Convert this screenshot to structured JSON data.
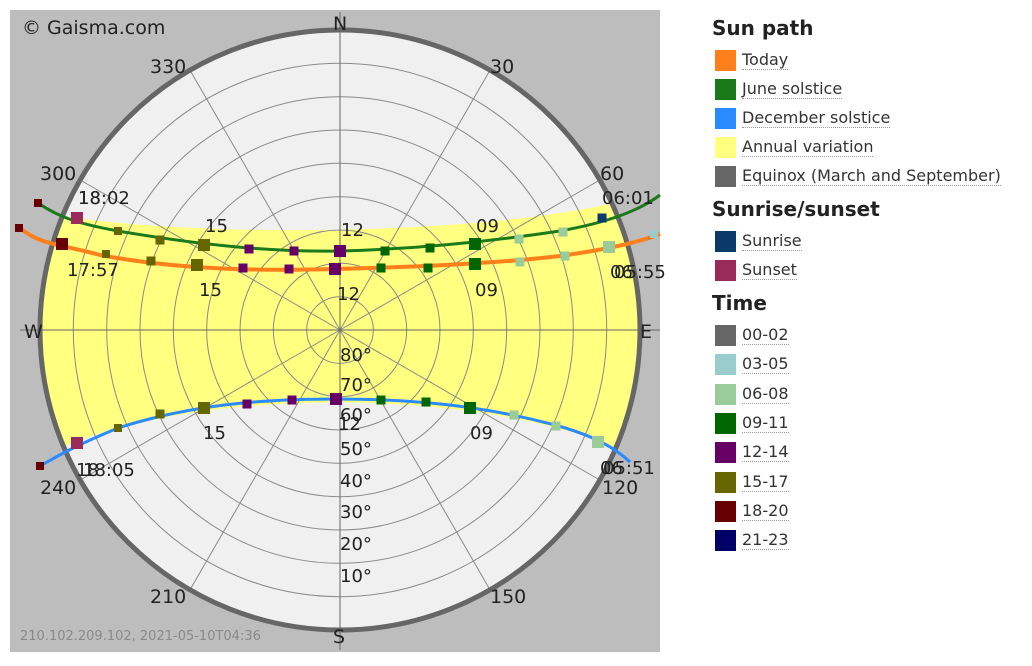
{
  "chart_data": {
    "type": "polar-sunpath",
    "credit": "© Gaisma.com",
    "footer": "210.102.209.102, 2021-05-10T04:36",
    "compass": {
      "north": "N",
      "south": "S",
      "east": "E",
      "west": "W"
    },
    "azimuth_labels": [
      "30",
      "60",
      "120",
      "150",
      "210",
      "240",
      "300",
      "330"
    ],
    "elevation_labels": [
      "80°",
      "70°",
      "60°",
      "50°",
      "40°",
      "30°",
      "20°",
      "10°"
    ],
    "series": [
      {
        "name": "June solstice",
        "color": "#1a7a1a",
        "sunrise_label": "06:01",
        "sunset_label": "18:02",
        "hour_labels": [
          {
            "text": "09",
            "hour": 9
          },
          {
            "text": "12",
            "hour": 12
          },
          {
            "text": "15",
            "hour": 15
          },
          {
            "text": "18",
            "hour": 18
          }
        ]
      },
      {
        "name": "Today",
        "color": "#ff7f1a",
        "sunrise_label": "05:55",
        "sunset_label": "17:57",
        "hour_labels": [
          {
            "text": "06",
            "hour": 6
          },
          {
            "text": "09",
            "hour": 9
          },
          {
            "text": "12",
            "hour": 12
          },
          {
            "text": "15",
            "hour": 15
          }
        ]
      },
      {
        "name": "December solstice",
        "color": "#2a8aff",
        "sunrise_label": "05:51",
        "sunset_label": "18:05",
        "hour_labels": [
          {
            "text": "06",
            "hour": 6
          },
          {
            "text": "09",
            "hour": 9
          },
          {
            "text": "12",
            "hour": 12
          },
          {
            "text": "15",
            "hour": 15
          },
          {
            "text": "18",
            "hour": 18
          }
        ]
      }
    ]
  },
  "legend": {
    "sun_path": {
      "title": "Sun path",
      "items": [
        {
          "label": "Today",
          "color": "#ff7f1a"
        },
        {
          "label": "June solstice",
          "color": "#1a7a1a"
        },
        {
          "label": "December solstice",
          "color": "#2a8aff"
        },
        {
          "label": "Annual variation",
          "color": "#ffff80"
        },
        {
          "label": "Equinox (March and September)",
          "color": "#666666"
        }
      ]
    },
    "sunrise_sunset": {
      "title": "Sunrise/sunset",
      "items": [
        {
          "label": "Sunrise",
          "color": "#0a3a6a"
        },
        {
          "label": "Sunset",
          "color": "#9a2a5a"
        }
      ]
    },
    "time": {
      "title": "Time",
      "items": [
        {
          "label": "00-02",
          "color": "#666666"
        },
        {
          "label": "03-05",
          "color": "#99cccc"
        },
        {
          "label": "06-08",
          "color": "#99cc99"
        },
        {
          "label": "09-11",
          "color": "#006600"
        },
        {
          "label": "12-14",
          "color": "#660066"
        },
        {
          "label": "15-17",
          "color": "#666600"
        },
        {
          "label": "18-20",
          "color": "#660000"
        },
        {
          "label": "21-23",
          "color": "#000066"
        }
      ]
    }
  }
}
